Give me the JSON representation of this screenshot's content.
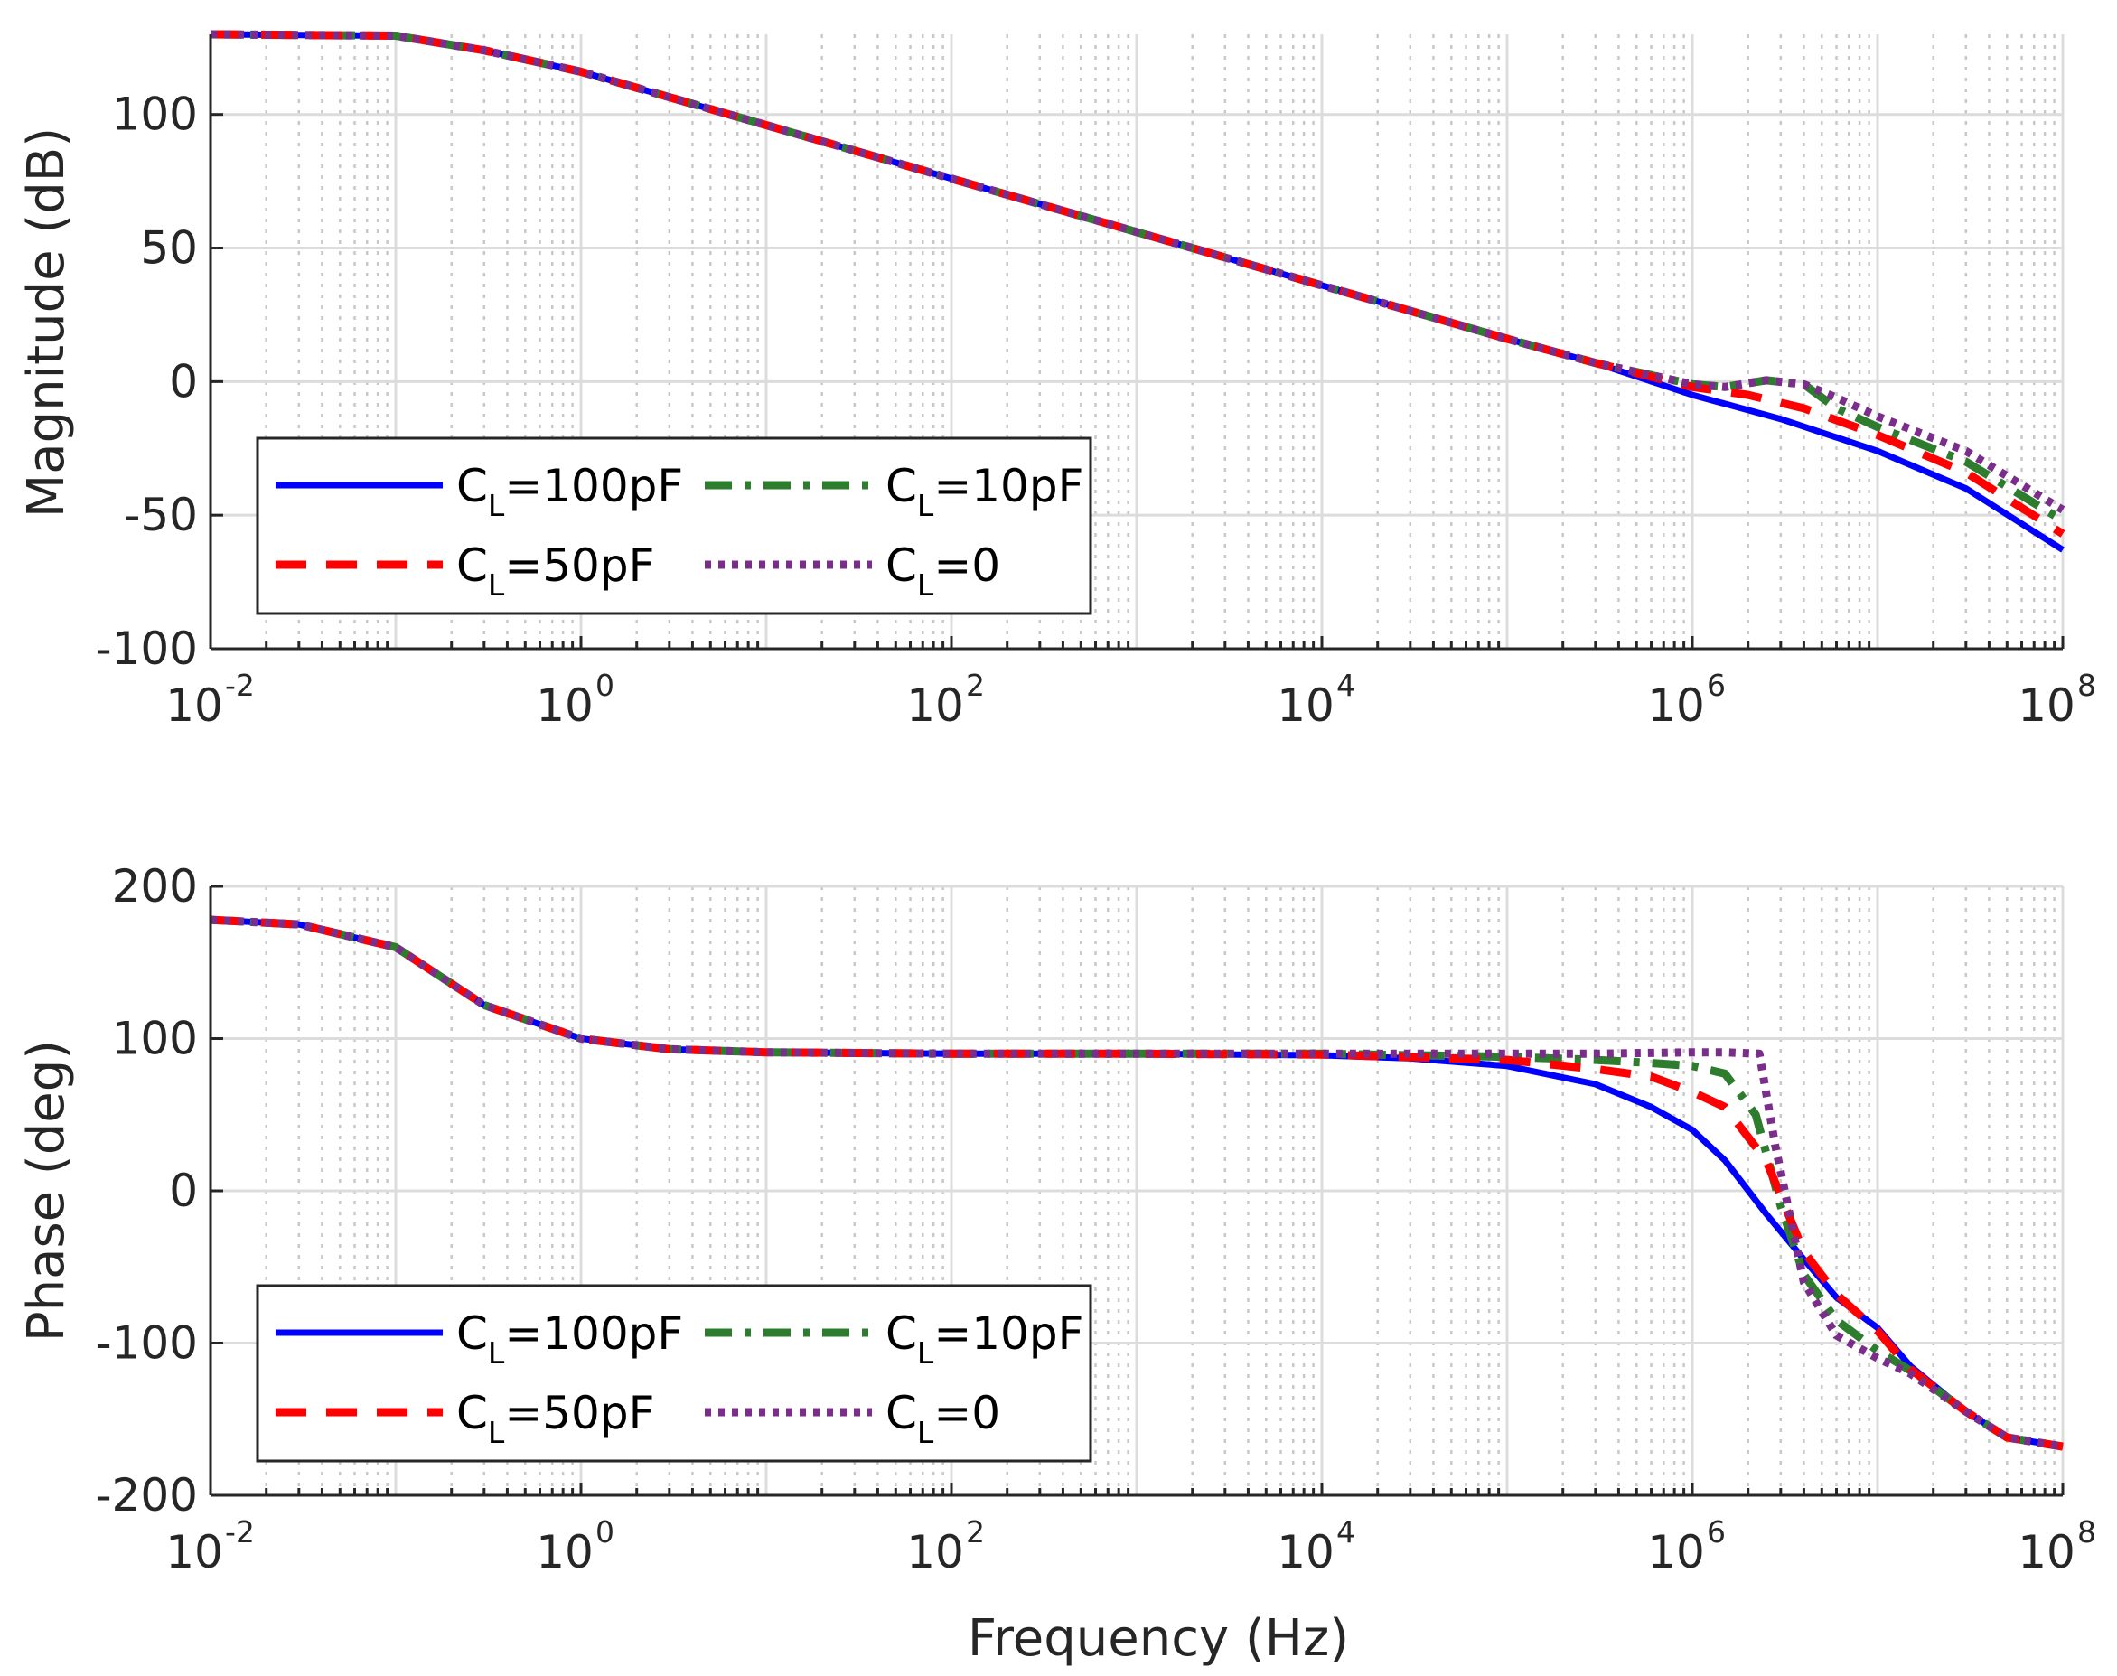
{
  "chart_data": [
    {
      "type": "line",
      "id": "magnitude",
      "ylabel": "Magnitude (dB)",
      "xlabel": "",
      "xscale": "log",
      "xlim": [
        0.01,
        100000000
      ],
      "ylim": [
        -100,
        130
      ],
      "x_ticks": [
        {
          "base": "10",
          "exp": "-2",
          "value": 0.01
        },
        {
          "base": "10",
          "exp": "0",
          "value": 1
        },
        {
          "base": "10",
          "exp": "2",
          "value": 100
        },
        {
          "base": "10",
          "exp": "4",
          "value": 10000
        },
        {
          "base": "10",
          "exp": "6",
          "value": 1000000
        },
        {
          "base": "10",
          "exp": "8",
          "value": 100000000
        }
      ],
      "y_ticks": [
        {
          "label": "100",
          "value": 100
        },
        {
          "label": "50",
          "value": 50
        },
        {
          "label": "0",
          "value": 0
        },
        {
          "label": "-50",
          "value": -50
        },
        {
          "label": "-100",
          "value": -100
        }
      ],
      "grid": true,
      "legend_position": "bottom-left",
      "series": [
        {
          "name": "C_L=100pF",
          "label_main": "C",
          "label_sub": "L",
          "label_rest": "=100pF",
          "color": "#0000ff",
          "style": "solid",
          "points": [
            [
              0.01,
              130
            ],
            [
              0.1,
              129.5
            ],
            [
              0.3,
              124
            ],
            [
              1,
              116
            ],
            [
              10,
              96
            ],
            [
              100,
              76
            ],
            [
              1000,
              56
            ],
            [
              10000,
              36
            ],
            [
              100000,
              16
            ],
            [
              300000,
              7
            ],
            [
              1000000,
              -5
            ],
            [
              3000000,
              -14
            ],
            [
              10000000,
              -26
            ],
            [
              30000000,
              -40
            ],
            [
              100000000,
              -63
            ]
          ]
        },
        {
          "name": "C_L=10pF",
          "label_main": "C",
          "label_sub": "L",
          "label_rest": "=10pF",
          "color": "#2e7d2e",
          "style": "dashdot",
          "points": [
            [
              0.01,
              130
            ],
            [
              0.1,
              129.5
            ],
            [
              0.3,
              124
            ],
            [
              1,
              116
            ],
            [
              10,
              96
            ],
            [
              100,
              76
            ],
            [
              1000,
              56
            ],
            [
              10000,
              36
            ],
            [
              100000,
              16
            ],
            [
              300000,
              7
            ],
            [
              1000000,
              -1
            ],
            [
              1500000,
              -2
            ],
            [
              2500000,
              0.5
            ],
            [
              4000000,
              -1
            ],
            [
              6000000,
              -10
            ],
            [
              10000000,
              -17
            ],
            [
              30000000,
              -30
            ],
            [
              100000000,
              -52
            ]
          ]
        },
        {
          "name": "C_L=50pF",
          "label_main": "C",
          "label_sub": "L",
          "label_rest": "=50pF",
          "color": "#ff0000",
          "style": "dashed",
          "points": [
            [
              0.01,
              130
            ],
            [
              0.1,
              129.5
            ],
            [
              0.3,
              124
            ],
            [
              1,
              116
            ],
            [
              10,
              96
            ],
            [
              100,
              76
            ],
            [
              1000,
              56
            ],
            [
              10000,
              36
            ],
            [
              100000,
              16
            ],
            [
              300000,
              7
            ],
            [
              1000000,
              -2
            ],
            [
              2000000,
              -5
            ],
            [
              4000000,
              -10
            ],
            [
              10000000,
              -20
            ],
            [
              30000000,
              -34
            ],
            [
              100000000,
              -57
            ]
          ]
        },
        {
          "name": "C_L=0",
          "label_main": "C",
          "label_sub": "L",
          "label_rest": "=0",
          "color": "#7b2d8b",
          "style": "dotted",
          "points": [
            [
              0.01,
              130
            ],
            [
              0.1,
              129.5
            ],
            [
              0.3,
              124
            ],
            [
              1,
              116
            ],
            [
              10,
              96
            ],
            [
              100,
              76
            ],
            [
              1000,
              56
            ],
            [
              10000,
              36
            ],
            [
              100000,
              16
            ],
            [
              300000,
              7
            ],
            [
              1000000,
              -1
            ],
            [
              1500000,
              -2
            ],
            [
              2500000,
              0.5
            ],
            [
              4000000,
              -1
            ],
            [
              6000000,
              -6
            ],
            [
              10000000,
              -13
            ],
            [
              30000000,
              -26
            ],
            [
              100000000,
              -48
            ]
          ]
        }
      ]
    },
    {
      "type": "line",
      "id": "phase",
      "ylabel": "Phase (deg)",
      "xlabel": "Frequency (Hz)",
      "xscale": "log",
      "xlim": [
        0.01,
        100000000
      ],
      "ylim": [
        -200,
        200
      ],
      "x_ticks": [
        {
          "base": "10",
          "exp": "-2",
          "value": 0.01
        },
        {
          "base": "10",
          "exp": "0",
          "value": 1
        },
        {
          "base": "10",
          "exp": "2",
          "value": 100
        },
        {
          "base": "10",
          "exp": "4",
          "value": 10000
        },
        {
          "base": "10",
          "exp": "6",
          "value": 1000000
        },
        {
          "base": "10",
          "exp": "8",
          "value": 100000000
        }
      ],
      "y_ticks": [
        {
          "label": "200",
          "value": 200
        },
        {
          "label": "100",
          "value": 100
        },
        {
          "label": "0",
          "value": 0
        },
        {
          "label": "-100",
          "value": -100
        },
        {
          "label": "-200",
          "value": -200
        }
      ],
      "grid": true,
      "legend_position": "bottom-left",
      "series": [
        {
          "name": "C_L=100pF",
          "label_main": "C",
          "label_sub": "L",
          "label_rest": "=100pF",
          "color": "#0000ff",
          "style": "solid",
          "points": [
            [
              0.01,
              178
            ],
            [
              0.03,
              175
            ],
            [
              0.1,
              160
            ],
            [
              0.3,
              122
            ],
            [
              1,
              100
            ],
            [
              3,
              93
            ],
            [
              10,
              91
            ],
            [
              100,
              90
            ],
            [
              1000,
              90
            ],
            [
              10000,
              89
            ],
            [
              30000,
              87
            ],
            [
              100000,
              82
            ],
            [
              300000,
              70
            ],
            [
              600000,
              55
            ],
            [
              1000000,
              40
            ],
            [
              1500000,
              20
            ],
            [
              2500000,
              -15
            ],
            [
              4000000,
              -45
            ],
            [
              6000000,
              -70
            ],
            [
              10000000,
              -90
            ],
            [
              15000000,
              -115
            ],
            [
              30000000,
              -145
            ],
            [
              50000000,
              -162
            ],
            [
              100000000,
              -168
            ]
          ]
        },
        {
          "name": "C_L=10pF",
          "label_main": "C",
          "label_sub": "L",
          "label_rest": "=10pF",
          "color": "#2e7d2e",
          "style": "dashdot",
          "points": [
            [
              0.01,
              178
            ],
            [
              0.03,
              175
            ],
            [
              0.1,
              160
            ],
            [
              0.3,
              122
            ],
            [
              1,
              100
            ],
            [
              3,
              93
            ],
            [
              10,
              91
            ],
            [
              100,
              90
            ],
            [
              1000,
              90
            ],
            [
              10000,
              90
            ],
            [
              100000,
              88
            ],
            [
              300000,
              86
            ],
            [
              600000,
              84
            ],
            [
              1000000,
              82
            ],
            [
              1500000,
              77
            ],
            [
              2200000,
              50
            ],
            [
              3000000,
              -10
            ],
            [
              4000000,
              -55
            ],
            [
              6000000,
              -85
            ],
            [
              10000000,
              -105
            ],
            [
              15000000,
              -118
            ],
            [
              30000000,
              -145
            ],
            [
              50000000,
              -162
            ],
            [
              100000000,
              -168
            ]
          ]
        },
        {
          "name": "C_L=50pF",
          "label_main": "C",
          "label_sub": "L",
          "label_rest": "=50pF",
          "color": "#ff0000",
          "style": "dashed",
          "points": [
            [
              0.01,
              178
            ],
            [
              0.03,
              175
            ],
            [
              0.1,
              160
            ],
            [
              0.3,
              122
            ],
            [
              1,
              100
            ],
            [
              3,
              93
            ],
            [
              10,
              91
            ],
            [
              100,
              90
            ],
            [
              1000,
              90
            ],
            [
              10000,
              89.5
            ],
            [
              100000,
              86
            ],
            [
              300000,
              80
            ],
            [
              600000,
              75
            ],
            [
              1000000,
              65
            ],
            [
              1500000,
              55
            ],
            [
              2500000,
              20
            ],
            [
              4000000,
              -40
            ],
            [
              6000000,
              -68
            ],
            [
              10000000,
              -92
            ],
            [
              15000000,
              -117
            ],
            [
              30000000,
              -145
            ],
            [
              50000000,
              -162
            ],
            [
              100000000,
              -168
            ]
          ]
        },
        {
          "name": "C_L=0",
          "label_main": "C",
          "label_sub": "L",
          "label_rest": "=0",
          "color": "#7b2d8b",
          "style": "dotted",
          "points": [
            [
              0.01,
              178
            ],
            [
              0.03,
              175
            ],
            [
              0.1,
              160
            ],
            [
              0.3,
              122
            ],
            [
              1,
              100
            ],
            [
              3,
              93
            ],
            [
              10,
              91
            ],
            [
              100,
              90
            ],
            [
              1000,
              90
            ],
            [
              10000,
              90
            ],
            [
              100000,
              90
            ],
            [
              300000,
              90
            ],
            [
              1000000,
              91
            ],
            [
              1500000,
              91
            ],
            [
              2300000,
              90
            ],
            [
              2800000,
              30
            ],
            [
              4000000,
              -60
            ],
            [
              6000000,
              -95
            ],
            [
              10000000,
              -110
            ],
            [
              15000000,
              -120
            ],
            [
              30000000,
              -145
            ],
            [
              50000000,
              -162
            ],
            [
              100000000,
              -168
            ]
          ]
        }
      ]
    }
  ]
}
